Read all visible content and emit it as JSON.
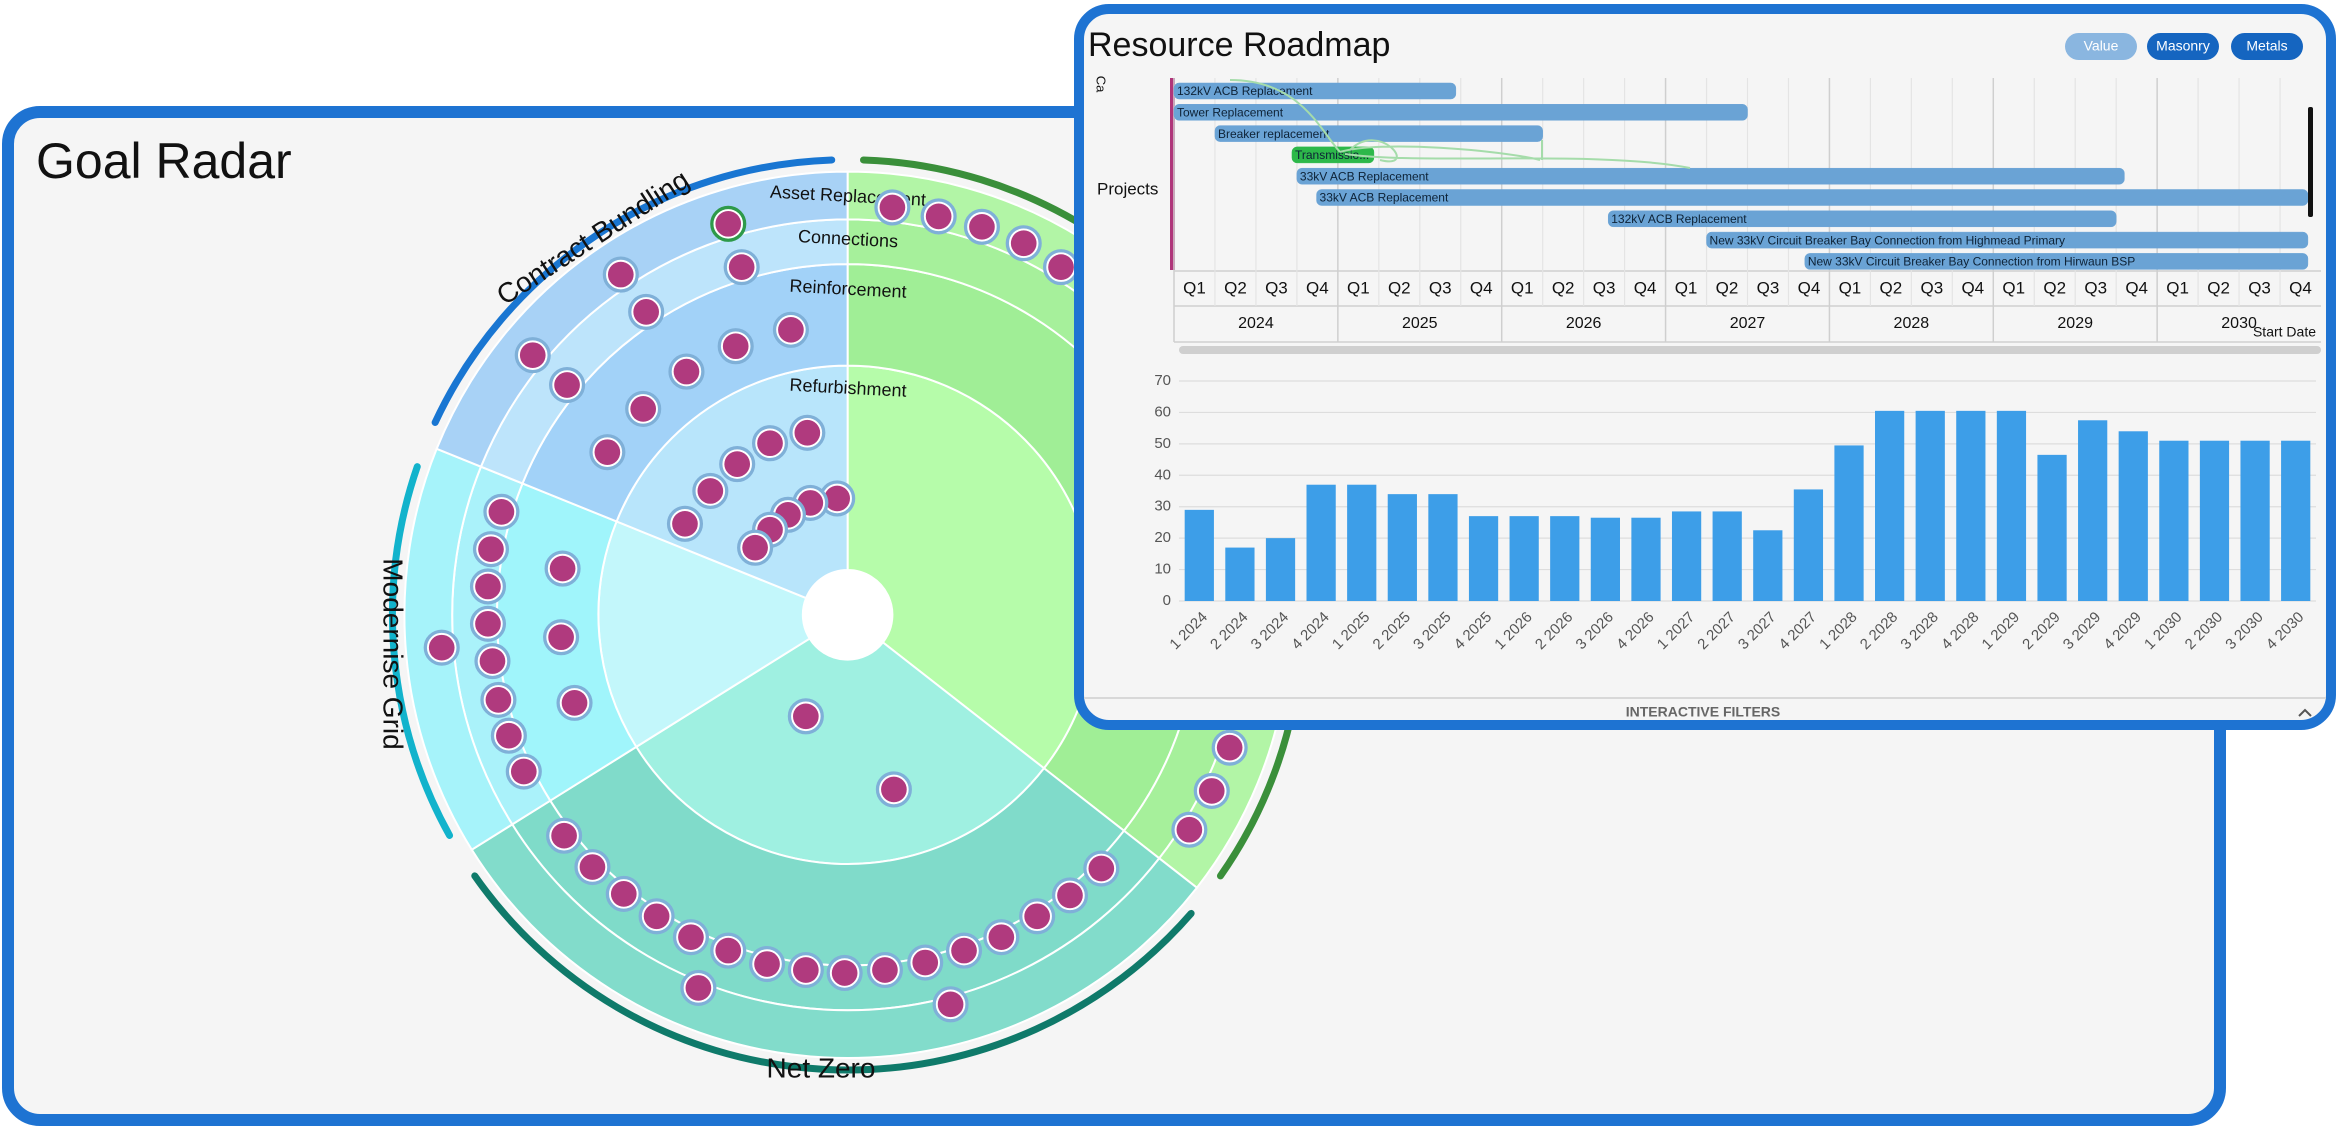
{
  "goal_radar": {
    "title": "Goal Radar",
    "sectors": [
      "Contract Bundling",
      "Modernise Grid",
      "Net Zero"
    ],
    "rings": [
      "Asset Replacement",
      "Connections",
      "Reinforcement",
      "Refurbishment"
    ]
  },
  "resource_roadmap": {
    "title": "Resource Roadmap",
    "filters": [
      "Value",
      "Masonry",
      "Metals"
    ],
    "gantt": {
      "category_label": "Ca",
      "row_label": "Projects",
      "x_label": "Start Date",
      "quarters": [
        "Q1",
        "Q2",
        "Q3",
        "Q4"
      ],
      "years": [
        2024,
        2025,
        2026,
        2027,
        2028,
        2029,
        2030
      ],
      "xlim": [
        2024,
        2031
      ],
      "tasks": [
        {
          "name": "132kV ACB Replacement",
          "start": 2024.0,
          "end": 2025.72,
          "color": "#6aa3d5"
        },
        {
          "name": "Tower Replacement",
          "start": 2024.0,
          "end": 2027.5,
          "color": "#6aa3d5"
        },
        {
          "name": "Breaker replacement",
          "start": 2024.25,
          "end": 2026.25,
          "color": "#6aa3d5"
        },
        {
          "name": "Transmissio...",
          "start": 2024.72,
          "end": 2025.22,
          "color": "#2db84a"
        },
        {
          "name": "33kV ACB Replacement",
          "start": 2024.75,
          "end": 2029.8,
          "color": "#6aa3d5"
        },
        {
          "name": "33kV ACB Replacement",
          "start": 2024.87,
          "end": 2030.92,
          "color": "#6aa3d5"
        },
        {
          "name": "132kV ACB Replacement",
          "start": 2026.65,
          "end": 2029.75,
          "color": "#6aa3d5"
        },
        {
          "name": "New 33kV Circuit Breaker Bay Connection from Highmead Primary",
          "start": 2027.25,
          "end": 2030.92,
          "color": "#6aa3d5"
        },
        {
          "name": "New 33kV Circuit Breaker Bay Connection from Hirwaun BSP",
          "start": 2027.85,
          "end": 2030.92,
          "color": "#6aa3d5"
        }
      ]
    },
    "footer": "INTERACTIVE FILTERS"
  },
  "chart_data": {
    "type": "bar",
    "categories": [
      "1 2024",
      "2 2024",
      "3 2024",
      "4 2024",
      "1 2025",
      "2 2025",
      "3 2025",
      "4 2025",
      "1 2026",
      "2 2026",
      "3 2026",
      "4 2026",
      "1 2027",
      "2 2027",
      "3 2027",
      "4 2027",
      "1 2028",
      "2 2028",
      "3 2028",
      "4 2028",
      "1 2029",
      "2 2029",
      "3 2029",
      "4 2029",
      "1 2030",
      "2 2030",
      "3 2030",
      "4 2030"
    ],
    "values": [
      29,
      17,
      20,
      37,
      37,
      34,
      34,
      27,
      27,
      27,
      26.5,
      26.5,
      28.5,
      28.5,
      22.5,
      35.5,
      49.5,
      60.5,
      60.5,
      60.5,
      60.5,
      46.5,
      57.5,
      54,
      51,
      51,
      51,
      51
    ],
    "color": "#3d9ee8",
    "ylim": [
      0,
      70
    ],
    "yticks": [
      0,
      10,
      20,
      30,
      40,
      50,
      60,
      70
    ],
    "grid": true
  }
}
